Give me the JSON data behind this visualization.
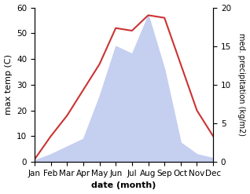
{
  "months": [
    "Jan",
    "Feb",
    "Mar",
    "Apr",
    "May",
    "Jun",
    "Jul",
    "Aug",
    "Sep",
    "Oct",
    "Nov",
    "Dec"
  ],
  "precipitation": [
    0.2,
    1,
    2,
    3,
    8.5,
    15,
    14,
    19,
    12,
    2.5,
    1,
    0.5
  ],
  "temp_color": "#cc3333",
  "precip_fill_color": "#c5cff0",
  "left_ylim": [
    0,
    60
  ],
  "right_ylim": [
    0,
    20
  ],
  "left_yticks": [
    0,
    10,
    20,
    30,
    40,
    50,
    60
  ],
  "right_yticks": [
    0,
    5,
    10,
    15,
    20
  ],
  "xlabel": "date (month)",
  "ylabel_left": "max temp (C)",
  "ylabel_right": "med. precipitation (kg/m2)",
  "label_fontsize": 8,
  "tick_fontsize": 7.5,
  "bg_color": "#ffffff",
  "scale_factor": 3.0,
  "temp_actual": [
    1,
    10,
    18,
    28,
    38,
    52,
    51,
    57,
    56,
    38,
    20,
    10
  ]
}
